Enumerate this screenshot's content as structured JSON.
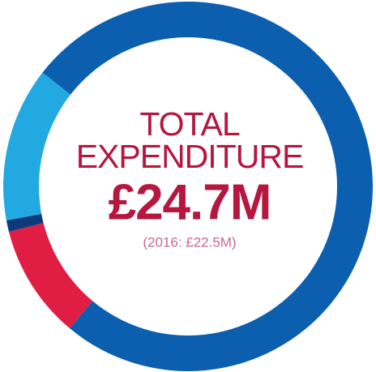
{
  "chart_data": {
    "type": "donut",
    "title_lines": [
      "TOTAL",
      "EXPENDITURE"
    ],
    "center_value": "£24.7M",
    "center_note": "(2016: £22.5M)",
    "categories": [
      null,
      null,
      null,
      null
    ],
    "values": [
      75.5,
      10,
      1,
      13.5
    ],
    "colors": [
      "#0b5fae",
      "#e01e44",
      "#0d3a7a",
      "#23a9e1"
    ],
    "start_angle": -52
  }
}
